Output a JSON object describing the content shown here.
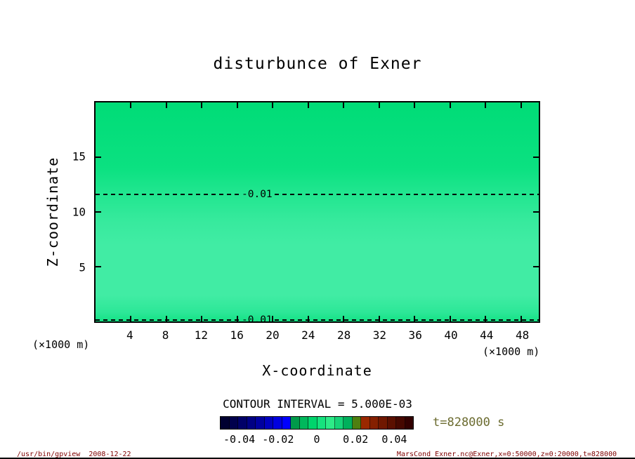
{
  "title": "disturbunce of Exner",
  "axes": {
    "y_label": "Z-coordinate",
    "x_label": "X-coordinate",
    "x_unit_left": "(×1000 m)",
    "x_unit_right": "(×1000 m)",
    "x_ticks": [
      "4",
      "8",
      "12",
      "16",
      "20",
      "24",
      "28",
      "32",
      "36",
      "40",
      "44",
      "48"
    ],
    "y_ticks": [
      "5",
      "10",
      "15"
    ]
  },
  "plot": {
    "fill_gradient": [
      [
        "0%",
        "#00dc77"
      ],
      [
        "30%",
        "#0be181"
      ],
      [
        "42%",
        "#22e690"
      ],
      [
        "55%",
        "#38ea9e"
      ],
      [
        "65%",
        "#41eca4"
      ],
      [
        "88%",
        "#41eca4"
      ],
      [
        "96%",
        "#2ce797"
      ],
      [
        "100%",
        "#14e285"
      ]
    ],
    "contours": [
      {
        "label": "-0.01"
      },
      {
        "label": "-0.01"
      }
    ]
  },
  "contour_interval_text": "CONTOUR INTERVAL = 5.000E-03",
  "time": {
    "text": "t=828000 s",
    "color": "#6b6b2f"
  },
  "colorbar": {
    "range": [
      -0.05,
      0.05
    ],
    "tick_labels": [
      "-0.04",
      "-0.02",
      "0",
      "0.02",
      "0.04"
    ],
    "colors": [
      "#000030",
      "#00004c",
      "#000068",
      "#000084",
      "#0000a0",
      "#0000c0",
      "#0000e0",
      "#0000ff",
      "#009a4a",
      "#00b85c",
      "#00d46c",
      "#16e27e",
      "#2deb88",
      "#16d478",
      "#00b05c",
      "#4f7f10",
      "#9a2800",
      "#852000",
      "#701800",
      "#5b1000",
      "#460800",
      "#320000"
    ]
  },
  "footer": {
    "left": "/usr/bin/gpview  2008-12-22",
    "right": "MarsCond_Exner.nc@Exner,x=0:50000,z=0:20000,t=828000"
  },
  "chart_data": {
    "type": "heatmap",
    "title": "disturbunce of Exner",
    "xlabel": "X-coordinate (×1000 m)",
    "ylabel": "Z-coordinate (×1000 m)",
    "xlim": [
      0,
      50
    ],
    "ylim": [
      0,
      20
    ],
    "x_ticks": [
      4,
      8,
      12,
      16,
      20,
      24,
      28,
      32,
      36,
      40,
      44,
      48
    ],
    "y_ticks": [
      5,
      10,
      15
    ],
    "contour_interval": 0.005,
    "contour_lines": [
      {
        "level": -0.01,
        "approx_z": 12,
        "style": "dashed",
        "span_x": [
          0,
          50
        ]
      },
      {
        "level": -0.01,
        "approx_z": 0.5,
        "style": "dashed",
        "span_x": [
          0,
          50
        ]
      }
    ],
    "fill_summary": "Near-uniform green shading: values about -0.010 above z≈12 and below z≈0.5, about -0.005 to 0 for 0.5<z<12",
    "colorbar": {
      "ticks": [
        -0.04,
        -0.02,
        0,
        0.02,
        0.04
      ],
      "range": [
        -0.05,
        0.05
      ]
    },
    "time_label": "t=828000 s",
    "grid": false,
    "legend_position": "none"
  }
}
